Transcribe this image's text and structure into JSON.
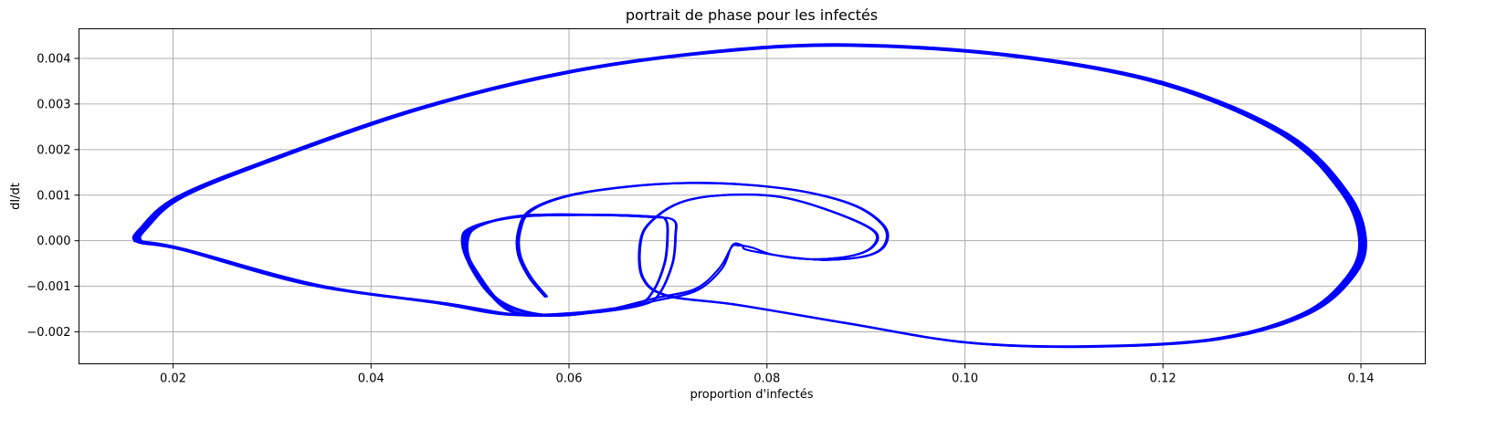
{
  "chart_data": {
    "type": "line",
    "title": "portrait de phase pour les infectés",
    "xlabel": "proportion d'infectés",
    "ylabel": "dI/dt",
    "xlim": [
      0.0105,
      0.1465
    ],
    "ylim": [
      -0.0027,
      0.00465
    ],
    "xticks": [
      0.02,
      0.04,
      0.06,
      0.08,
      0.1,
      0.12,
      0.14
    ],
    "xtick_labels": [
      "0.02",
      "0.04",
      "0.06",
      "0.08",
      "0.10",
      "0.12",
      "0.14"
    ],
    "yticks": [
      -0.002,
      -0.001,
      0.0,
      0.001,
      0.002,
      0.003,
      0.004
    ],
    "ytick_labels": [
      "−0.002",
      "−0.001",
      "0.000",
      "0.001",
      "0.002",
      "0.003",
      "0.004"
    ],
    "grid": true,
    "line_color": "#0000ff",
    "series": [
      {
        "points": [
          [
            0.0578,
            -0.00122
          ],
          [
            0.0562,
            -0.0008
          ],
          [
            0.0551,
            -0.0003
          ],
          [
            0.0551,
            0.0002
          ],
          [
            0.0562,
            0.00065
          ],
          [
            0.06,
            0.00098
          ],
          [
            0.066,
            0.00118
          ],
          [
            0.072,
            0.00126
          ],
          [
            0.078,
            0.00122
          ],
          [
            0.084,
            0.00106
          ],
          [
            0.089,
            0.00075
          ],
          [
            0.0918,
            0.0003
          ],
          [
            0.0918,
            -0.0001
          ],
          [
            0.09,
            -0.00033
          ],
          [
            0.086,
            -0.00042
          ],
          [
            0.082,
            -0.00035
          ],
          [
            0.078,
            -0.0002
          ],
          [
            0.0775,
            -0.0001
          ],
          [
            0.0765,
            -0.0001
          ],
          [
            0.0755,
            -0.0006
          ],
          [
            0.073,
            -0.00108
          ],
          [
            0.069,
            -0.0013
          ],
          [
            0.064,
            -0.0015
          ],
          [
            0.059,
            -0.00163
          ],
          [
            0.054,
            -0.0015
          ],
          [
            0.0505,
            -0.0006
          ],
          [
            0.0495,
            0.0
          ],
          [
            0.0505,
            0.0003
          ],
          [
            0.055,
            0.00052
          ],
          [
            0.062,
            0.00056
          ],
          [
            0.068,
            0.00052
          ],
          [
            0.0706,
            0.00045
          ],
          [
            0.0708,
            0.0001
          ],
          [
            0.0705,
            -0.0005
          ],
          [
            0.0692,
            -0.00115
          ],
          [
            0.0675,
            -0.0014
          ],
          [
            0.062,
            -0.00158
          ],
          [
            0.055,
            -0.00162
          ],
          [
            0.048,
            -0.00138
          ],
          [
            0.035,
            -0.00098
          ],
          [
            0.0215,
            -0.0002
          ],
          [
            0.017,
            -2e-05
          ],
          [
            0.0175,
            0.0003
          ],
          [
            0.021,
            0.00095
          ],
          [
            0.03,
            0.00175
          ],
          [
            0.045,
            0.00288
          ],
          [
            0.06,
            0.00368
          ],
          [
            0.075,
            0.00413
          ],
          [
            0.0885,
            0.00427
          ],
          [
            0.105,
            0.00403
          ],
          [
            0.12,
            0.00342
          ],
          [
            0.132,
            0.00232
          ],
          [
            0.138,
            0.00105
          ],
          [
            0.1398,
            0.0
          ],
          [
            0.1385,
            -0.0008
          ],
          [
            0.134,
            -0.0016
          ],
          [
            0.125,
            -0.00215
          ],
          [
            0.112,
            -0.00231
          ],
          [
            0.1,
            -0.00222
          ],
          [
            0.088,
            -0.0018
          ],
          [
            0.077,
            -0.0014
          ],
          [
            0.07,
            -0.0012
          ],
          [
            0.0675,
            -0.0008
          ],
          [
            0.0673,
            0.0
          ],
          [
            0.0685,
            0.00045
          ],
          [
            0.0715,
            0.00085
          ],
          [
            0.076,
            0.001
          ],
          [
            0.0815,
            0.00095
          ],
          [
            0.087,
            0.0006
          ],
          [
            0.0908,
            0.0002
          ],
          [
            0.0905,
            -0.00015
          ],
          [
            0.088,
            -0.00035
          ],
          [
            0.084,
            -0.0004
          ],
          [
            0.0805,
            -0.0003
          ],
          [
            0.0785,
            -0.00015
          ],
          [
            0.077,
            -0.0001
          ],
          [
            0.0764,
            -0.00015
          ],
          [
            0.0752,
            -0.0006
          ],
          [
            0.0728,
            -0.00105
          ],
          [
            0.0688,
            -0.00125
          ],
          [
            0.063,
            -0.00155
          ],
          [
            0.0575,
            -0.00162
          ],
          [
            0.053,
            -0.0013
          ],
          [
            0.0503,
            -0.00055
          ],
          [
            0.0498,
            0.0
          ],
          [
            0.051,
            0.00032
          ],
          [
            0.0555,
            0.00055
          ],
          [
            0.0625,
            0.00057
          ],
          [
            0.0685,
            0.00053
          ],
          [
            0.0698,
            0.00046
          ],
          [
            0.07,
            0.0001
          ],
          [
            0.0697,
            -0.0005
          ],
          [
            0.0685,
            -0.00112
          ],
          [
            0.0668,
            -0.00138
          ],
          [
            0.061,
            -0.00157
          ],
          [
            0.054,
            -0.00161
          ],
          [
            0.047,
            -0.00136
          ],
          [
            0.034,
            -0.00095
          ],
          [
            0.0212,
            -0.00018
          ],
          [
            0.0168,
            -1e-05
          ]
        ]
      }
    ]
  }
}
